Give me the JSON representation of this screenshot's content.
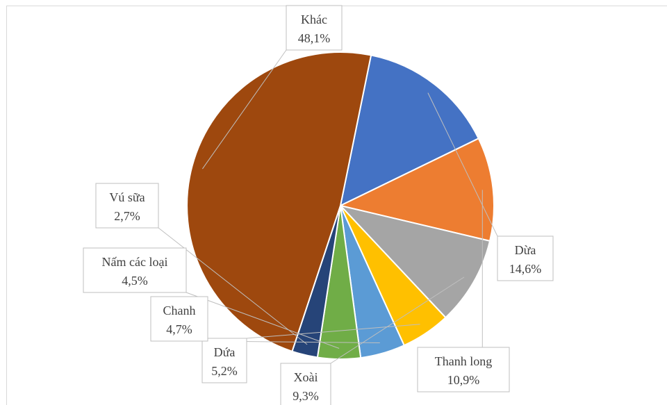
{
  "chart_data": {
    "type": "pie",
    "title": "",
    "start_angle_deg": 78.5,
    "categories": [
      "Dừa",
      "Thanh long",
      "Xoài",
      "Dứa",
      "Chanh",
      "Nấm các loại",
      "Vú sữa",
      "Khác"
    ],
    "value_labels": [
      "14,6%",
      "10,9%",
      "9,3%",
      "5,2%",
      "4,7%",
      "4,5%",
      "2,7%",
      "48,1%"
    ],
    "values": [
      14.6,
      10.9,
      9.3,
      5.2,
      4.7,
      4.5,
      2.7,
      48.1
    ],
    "unit": "%",
    "colors": [
      "#4472c4",
      "#ed7d31",
      "#a5a5a5",
      "#ffc000",
      "#5b9bd5",
      "#70ad47",
      "#264478",
      "#9e480e"
    ],
    "legend": "none",
    "data_labels": "callouts"
  }
}
